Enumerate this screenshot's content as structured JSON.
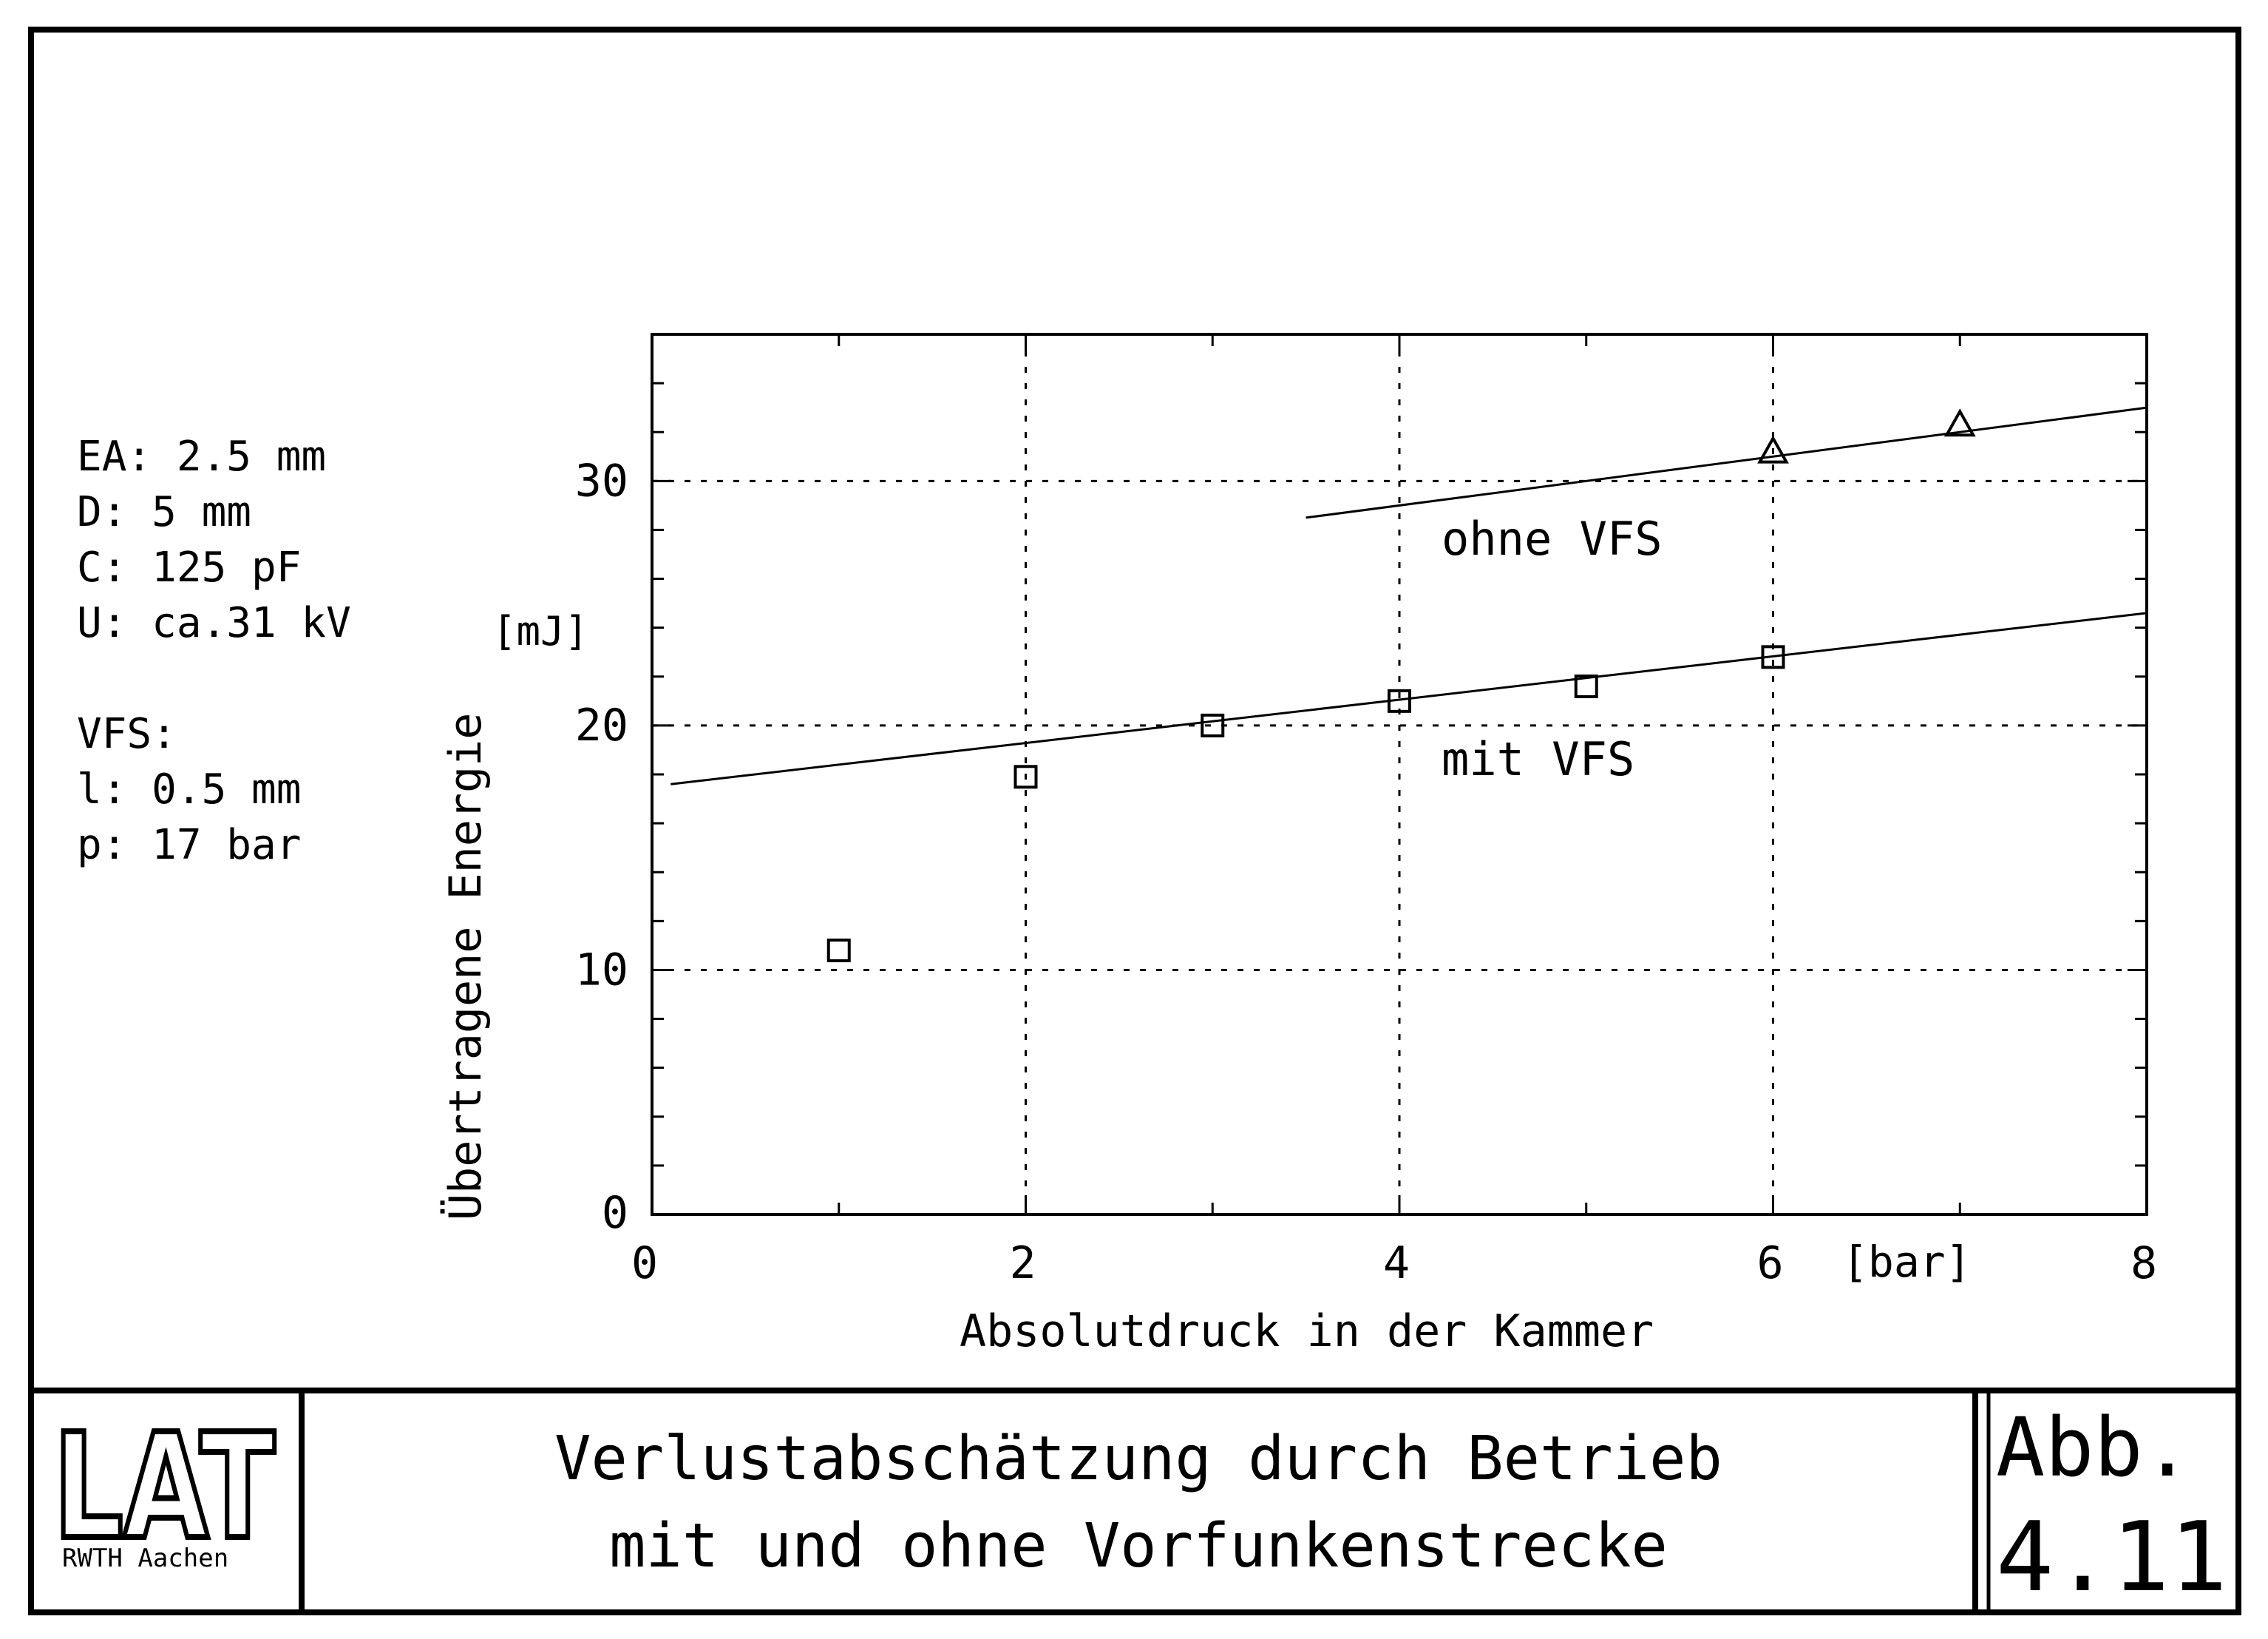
{
  "chart_data": {
    "type": "scatter",
    "xlabel": "Absolutdruck in der Kammer",
    "x_unit": "[bar]",
    "ylabel": "Übertragene Energie",
    "y_unit": "[mJ]",
    "xlim": [
      0,
      8
    ],
    "ylim": [
      0,
      36
    ],
    "x_ticks": [
      0,
      2,
      4,
      6,
      8
    ],
    "y_ticks": [
      0,
      10,
      20,
      30
    ],
    "x_tick_labels": [
      "0",
      "2",
      "4",
      "6",
      "8"
    ],
    "y_tick_labels": [
      "0",
      "10",
      "20",
      "30"
    ],
    "grid": "dotted",
    "series": [
      {
        "name": "mit VFS",
        "marker": "square",
        "points": [
          [
            1,
            10.8
          ],
          [
            2,
            17.9
          ],
          [
            3,
            20.0
          ],
          [
            4,
            21.0
          ],
          [
            5,
            21.6
          ],
          [
            6,
            22.8
          ]
        ],
        "fit_line": [
          [
            0.1,
            17.6
          ],
          [
            8,
            24.6
          ]
        ]
      },
      {
        "name": "ohne VFS",
        "marker": "triangle",
        "points": [
          [
            6,
            31.2
          ],
          [
            7,
            32.3
          ]
        ],
        "fit_line": [
          [
            3.5,
            28.5
          ],
          [
            8,
            33.0
          ]
        ]
      }
    ],
    "parameters": [
      "EA: 2.5 mm",
      "D: 5 mm",
      "C: 125 pF",
      "U: ca.31 kV",
      "",
      "VFS:",
      "l: 0.5 mm",
      "p: 17 bar"
    ]
  },
  "title_block": {
    "logo_text": "LAT",
    "logo_sub": "RWTH  Aachen",
    "title_line1": "Verlustabschätzung durch Betrieb",
    "title_line2": "mit und ohne Vorfunkenstrecke",
    "fig_label": "Abb.",
    "fig_number": "4.11"
  }
}
